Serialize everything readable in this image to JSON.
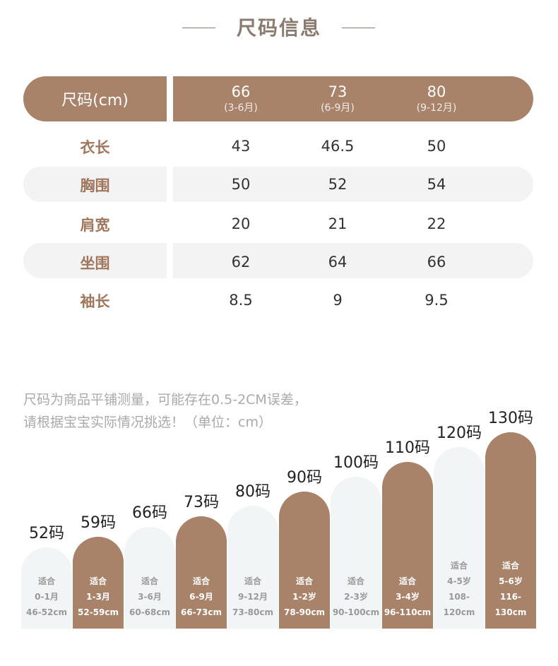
{
  "title": "尺码信息",
  "table": {
    "header_label": "尺码(cm)",
    "columns": [
      {
        "size": "66",
        "months": "(3-6月)"
      },
      {
        "size": "73",
        "months": "(6-9月)"
      },
      {
        "size": "80",
        "months": "(9-12月)"
      }
    ],
    "rows": [
      {
        "label": "衣长",
        "values": [
          "43",
          "46.5",
          "50"
        ]
      },
      {
        "label": "胸围",
        "values": [
          "50",
          "52",
          "54"
        ]
      },
      {
        "label": "肩宽",
        "values": [
          "20",
          "21",
          "22"
        ]
      },
      {
        "label": "坐围",
        "values": [
          "62",
          "64",
          "66"
        ]
      },
      {
        "label": "袖长",
        "values": [
          "8.5",
          "9",
          "9.5"
        ]
      }
    ]
  },
  "note": [
    "尺码为商品平铺测量，可能存在0.5-2CM误差，",
    "请根据宝宝实际情况挑选！（单位：cm）"
  ],
  "sizes": [
    {
      "size": 52,
      "label": "52码",
      "fit": "适合",
      "age": "0-1月",
      "range": "46-52cm"
    },
    {
      "size": 59,
      "label": "59码",
      "fit": "适合",
      "age": "1-3月",
      "range": "52-59cm"
    },
    {
      "size": 66,
      "label": "66码",
      "fit": "适合",
      "age": "3-6月",
      "range": "60-68cm"
    },
    {
      "size": 73,
      "label": "73码",
      "fit": "适合",
      "age": "6-9月",
      "range": "66-73cm"
    },
    {
      "size": 80,
      "label": "80码",
      "fit": "适合",
      "age": "9-12月",
      "range": "73-80cm"
    },
    {
      "size": 90,
      "label": "90码",
      "fit": "适合",
      "age": "1-2岁",
      "range": "78-90cm"
    },
    {
      "size": 100,
      "label": "100码",
      "fit": "适合",
      "age": "2-3岁",
      "range": "90-100cm"
    },
    {
      "size": 110,
      "label": "110码",
      "fit": "适合",
      "age": "3-4岁",
      "range": "96-110cm"
    },
    {
      "size": 120,
      "label": "120码",
      "fit": "适合",
      "age": "4-5岁",
      "range": "108-120cm"
    },
    {
      "size": 130,
      "label": "130码",
      "fit": "适合",
      "age": "5-6岁",
      "range": "116-130cm"
    }
  ],
  "colors": {
    "brand": "#a8836a",
    "light": "#f2f5f5",
    "label": "#a0775c"
  }
}
